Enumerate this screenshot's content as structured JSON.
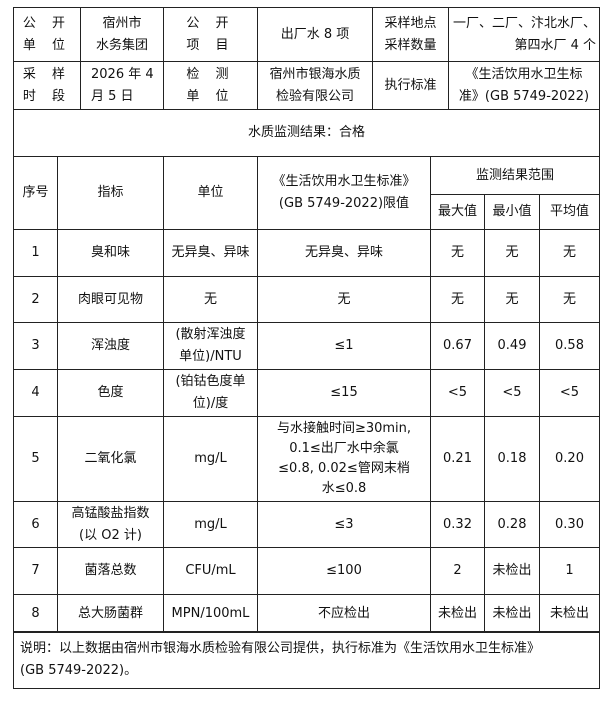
{
  "info": {
    "unit_label": "公 开\n单 位",
    "unit": "宿州市\n水务集团",
    "item_label": "公 开\n项 目",
    "item": "出厂水 8 项",
    "site_label": "采样地点\n采样数量",
    "site": "一厂、二厂、汴北水厂、\n第四水厂 4 个",
    "period_label": "采 样\n时 段",
    "period": "2026 年 4\n月 5 日",
    "lab_label": "检 测\n单 位",
    "lab": "宿州市银海水质\n检验有限公司",
    "std_label": "执行标准",
    "std": "《生活饮用水卫生标\n准》(GB 5749-2022)"
  },
  "result": "水质监测结果：合格",
  "headers": {
    "no": "序号",
    "index": "指标",
    "unit": "单位",
    "limit": "《生活饮用水卫生标准》\n(GB 5749-2022)限值",
    "range": "监测结果范围",
    "max": "最大值",
    "min": "最小值",
    "avg": "平均值"
  },
  "rows": [
    {
      "no": "1",
      "index": "臭和味",
      "unit": "无异臭、异味",
      "limit": "无异臭、异味",
      "max": "无",
      "min": "无",
      "avg": "无"
    },
    {
      "no": "2",
      "index": "肉眼可见物",
      "unit": "无",
      "limit": "无",
      "max": "无",
      "min": "无",
      "avg": "无"
    },
    {
      "no": "3",
      "index": "浑浊度",
      "unit": "(散射浑浊度\n单位)/NTU",
      "limit": "≤1",
      "max": "0.67",
      "min": "0.49",
      "avg": "0.58"
    },
    {
      "no": "4",
      "index": "色度",
      "unit": "(铂钴色度单\n位)/度",
      "limit": "≤15",
      "max": "<5",
      "min": "<5",
      "avg": "<5"
    },
    {
      "no": "5",
      "index": "二氧化氯",
      "unit": "mg/L",
      "limit": "与水接触时间≥30min,\n0.1≤出厂水中余氯\n≤0.8, 0.02≤管网末梢\n水≤0.8",
      "max": "0.21",
      "min": "0.18",
      "avg": "0.20"
    },
    {
      "no": "6",
      "index": "高锰酸盐指数\n(以 O2 计)",
      "unit": "mg/L",
      "limit": "≤3",
      "max": "0.32",
      "min": "0.28",
      "avg": "0.30"
    },
    {
      "no": "7",
      "index": "菌落总数",
      "unit": "CFU/mL",
      "limit": "≤100",
      "max": "2",
      "min": "未检出",
      "avg": "1"
    },
    {
      "no": "8",
      "index": "总大肠菌群",
      "unit": "MPN/100mL",
      "limit": "不应检出",
      "max": "未检出",
      "min": "未检出",
      "avg": "未检出"
    }
  ],
  "note": "说明：以上数据由宿州市银海水质检验有限公司提供，执行标准为《生活饮用水卫生标准》\n(GB 5749-2022)。"
}
